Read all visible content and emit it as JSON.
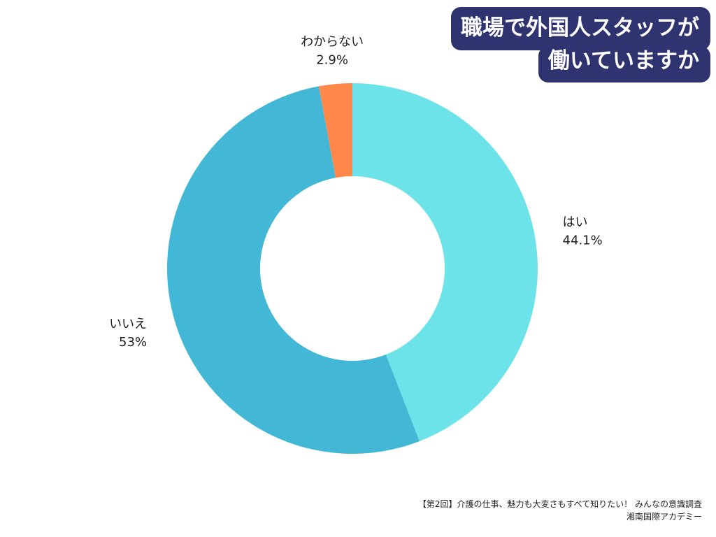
{
  "chart_data": {
    "type": "pie",
    "title_lines": [
      "職場で外国人スタッフが",
      "働いていますか"
    ],
    "slices": [
      {
        "label": "はい",
        "value": 44.1,
        "value_label": "44.1%",
        "color": "#6be3e8"
      },
      {
        "label": "いいえ",
        "value": 53,
        "value_label": "53%",
        "color": "#43b8d6"
      },
      {
        "label": "わからない",
        "value": 2.9,
        "value_label": "2.9%",
        "color": "#ff874a"
      }
    ],
    "donut": true
  },
  "footer": {
    "source": "【第2回】介護の仕事、魅力も大変さもすべて知りたい！ みんなの意識調査",
    "publisher": "湘南国際アカデミー"
  }
}
